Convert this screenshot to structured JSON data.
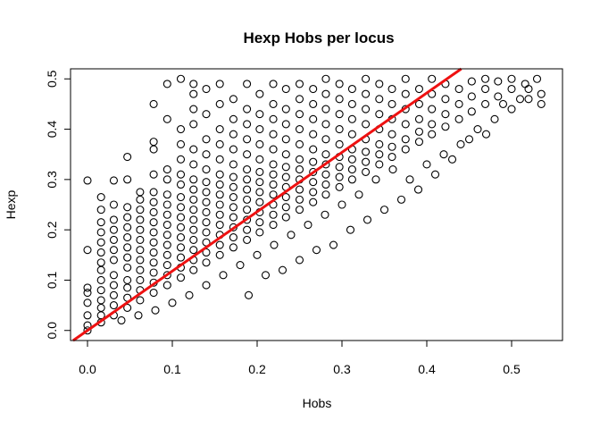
{
  "chart_data": {
    "type": "scatter",
    "title": "Hexp Hobs per locus",
    "xlabel": "Hobs",
    "ylabel": "Hexp",
    "xlim": [
      -0.02,
      0.56
    ],
    "ylim": [
      -0.02,
      0.52
    ],
    "xticks": [
      0.0,
      0.1,
      0.2,
      0.3,
      0.4,
      0.5
    ],
    "xtick_labels": [
      "0.0",
      "0.1",
      "0.2",
      "0.3",
      "0.4",
      "0.5"
    ],
    "yticks": [
      0.0,
      0.1,
      0.2,
      0.3,
      0.4,
      0.5
    ],
    "ytick_labels": [
      "0.0",
      "0.1",
      "0.2",
      "0.3",
      "0.4",
      "0.5"
    ],
    "grid": false,
    "point_marker": "open-circle",
    "point_color": "#000000",
    "fit_line": {
      "intercept": 0.0,
      "slope": 1.18,
      "color": "#ee1111"
    },
    "points": [
      [
        0.0,
        0.0
      ],
      [
        0.0,
        0.01
      ],
      [
        0.0,
        0.03
      ],
      [
        0.0,
        0.055
      ],
      [
        0.0,
        0.075
      ],
      [
        0.0,
        0.085
      ],
      [
        0.0,
        0.16
      ],
      [
        0.0,
        0.298
      ],
      [
        0.016,
        0.016
      ],
      [
        0.016,
        0.03
      ],
      [
        0.016,
        0.045
      ],
      [
        0.016,
        0.06
      ],
      [
        0.016,
        0.08
      ],
      [
        0.016,
        0.1
      ],
      [
        0.016,
        0.12
      ],
      [
        0.016,
        0.135
      ],
      [
        0.016,
        0.155
      ],
      [
        0.016,
        0.175
      ],
      [
        0.016,
        0.195
      ],
      [
        0.016,
        0.215
      ],
      [
        0.016,
        0.24
      ],
      [
        0.016,
        0.265
      ],
      [
        0.031,
        0.03
      ],
      [
        0.031,
        0.05
      ],
      [
        0.031,
        0.07
      ],
      [
        0.031,
        0.09
      ],
      [
        0.031,
        0.11
      ],
      [
        0.031,
        0.14
      ],
      [
        0.031,
        0.16
      ],
      [
        0.031,
        0.18
      ],
      [
        0.031,
        0.2
      ],
      [
        0.031,
        0.22
      ],
      [
        0.031,
        0.25
      ],
      [
        0.031,
        0.298
      ],
      [
        0.047,
        0.045
      ],
      [
        0.047,
        0.065
      ],
      [
        0.047,
        0.085
      ],
      [
        0.047,
        0.1
      ],
      [
        0.047,
        0.125
      ],
      [
        0.047,
        0.145
      ],
      [
        0.047,
        0.165
      ],
      [
        0.047,
        0.185
      ],
      [
        0.047,
        0.205
      ],
      [
        0.047,
        0.225
      ],
      [
        0.047,
        0.245
      ],
      [
        0.047,
        0.3
      ],
      [
        0.047,
        0.345
      ],
      [
        0.062,
        0.06
      ],
      [
        0.062,
        0.08
      ],
      [
        0.062,
        0.1
      ],
      [
        0.062,
        0.12
      ],
      [
        0.062,
        0.14
      ],
      [
        0.062,
        0.16
      ],
      [
        0.062,
        0.18
      ],
      [
        0.062,
        0.2
      ],
      [
        0.062,
        0.22
      ],
      [
        0.062,
        0.24
      ],
      [
        0.062,
        0.26
      ],
      [
        0.062,
        0.275
      ],
      [
        0.078,
        0.075
      ],
      [
        0.078,
        0.095
      ],
      [
        0.078,
        0.115
      ],
      [
        0.078,
        0.135
      ],
      [
        0.078,
        0.155
      ],
      [
        0.078,
        0.175
      ],
      [
        0.078,
        0.195
      ],
      [
        0.078,
        0.215
      ],
      [
        0.078,
        0.235
      ],
      [
        0.078,
        0.255
      ],
      [
        0.078,
        0.275
      ],
      [
        0.078,
        0.31
      ],
      [
        0.078,
        0.36
      ],
      [
        0.078,
        0.375
      ],
      [
        0.078,
        0.45
      ],
      [
        0.094,
        0.09
      ],
      [
        0.094,
        0.11
      ],
      [
        0.094,
        0.13
      ],
      [
        0.094,
        0.15
      ],
      [
        0.094,
        0.17
      ],
      [
        0.094,
        0.19
      ],
      [
        0.094,
        0.21
      ],
      [
        0.094,
        0.23
      ],
      [
        0.094,
        0.25
      ],
      [
        0.094,
        0.27
      ],
      [
        0.094,
        0.3
      ],
      [
        0.094,
        0.32
      ],
      [
        0.094,
        0.42
      ],
      [
        0.094,
        0.49
      ],
      [
        0.11,
        0.105
      ],
      [
        0.11,
        0.125
      ],
      [
        0.11,
        0.145
      ],
      [
        0.11,
        0.165
      ],
      [
        0.11,
        0.185
      ],
      [
        0.11,
        0.205
      ],
      [
        0.11,
        0.225
      ],
      [
        0.11,
        0.245
      ],
      [
        0.11,
        0.265
      ],
      [
        0.11,
        0.29
      ],
      [
        0.11,
        0.31
      ],
      [
        0.11,
        0.34
      ],
      [
        0.11,
        0.37
      ],
      [
        0.11,
        0.4
      ],
      [
        0.11,
        0.5
      ],
      [
        0.125,
        0.12
      ],
      [
        0.125,
        0.14
      ],
      [
        0.125,
        0.16
      ],
      [
        0.125,
        0.18
      ],
      [
        0.125,
        0.2
      ],
      [
        0.125,
        0.22
      ],
      [
        0.125,
        0.24
      ],
      [
        0.125,
        0.26
      ],
      [
        0.125,
        0.28
      ],
      [
        0.125,
        0.3
      ],
      [
        0.125,
        0.33
      ],
      [
        0.125,
        0.36
      ],
      [
        0.125,
        0.41
      ],
      [
        0.125,
        0.44
      ],
      [
        0.125,
        0.47
      ],
      [
        0.125,
        0.49
      ],
      [
        0.14,
        0.135
      ],
      [
        0.14,
        0.155
      ],
      [
        0.14,
        0.175
      ],
      [
        0.14,
        0.195
      ],
      [
        0.14,
        0.215
      ],
      [
        0.14,
        0.235
      ],
      [
        0.14,
        0.255
      ],
      [
        0.14,
        0.275
      ],
      [
        0.14,
        0.295
      ],
      [
        0.14,
        0.32
      ],
      [
        0.14,
        0.35
      ],
      [
        0.14,
        0.38
      ],
      [
        0.14,
        0.43
      ],
      [
        0.14,
        0.48
      ],
      [
        0.156,
        0.15
      ],
      [
        0.156,
        0.17
      ],
      [
        0.156,
        0.19
      ],
      [
        0.156,
        0.21
      ],
      [
        0.156,
        0.23
      ],
      [
        0.156,
        0.25
      ],
      [
        0.156,
        0.27
      ],
      [
        0.156,
        0.29
      ],
      [
        0.156,
        0.31
      ],
      [
        0.156,
        0.34
      ],
      [
        0.156,
        0.37
      ],
      [
        0.156,
        0.4
      ],
      [
        0.156,
        0.45
      ],
      [
        0.156,
        0.49
      ],
      [
        0.172,
        0.165
      ],
      [
        0.172,
        0.185
      ],
      [
        0.172,
        0.205
      ],
      [
        0.172,
        0.225
      ],
      [
        0.172,
        0.245
      ],
      [
        0.172,
        0.265
      ],
      [
        0.172,
        0.285
      ],
      [
        0.172,
        0.305
      ],
      [
        0.172,
        0.33
      ],
      [
        0.172,
        0.36
      ],
      [
        0.172,
        0.39
      ],
      [
        0.172,
        0.42
      ],
      [
        0.172,
        0.46
      ],
      [
        0.188,
        0.18
      ],
      [
        0.188,
        0.2
      ],
      [
        0.188,
        0.22
      ],
      [
        0.188,
        0.24
      ],
      [
        0.188,
        0.26
      ],
      [
        0.188,
        0.28
      ],
      [
        0.188,
        0.3
      ],
      [
        0.188,
        0.32
      ],
      [
        0.188,
        0.35
      ],
      [
        0.188,
        0.38
      ],
      [
        0.188,
        0.41
      ],
      [
        0.188,
        0.44
      ],
      [
        0.188,
        0.49
      ],
      [
        0.203,
        0.195
      ],
      [
        0.203,
        0.215
      ],
      [
        0.203,
        0.235
      ],
      [
        0.203,
        0.255
      ],
      [
        0.203,
        0.275
      ],
      [
        0.203,
        0.295
      ],
      [
        0.203,
        0.315
      ],
      [
        0.203,
        0.34
      ],
      [
        0.203,
        0.37
      ],
      [
        0.203,
        0.4
      ],
      [
        0.203,
        0.43
      ],
      [
        0.203,
        0.47
      ],
      [
        0.219,
        0.21
      ],
      [
        0.219,
        0.23
      ],
      [
        0.219,
        0.25
      ],
      [
        0.219,
        0.27
      ],
      [
        0.219,
        0.29
      ],
      [
        0.219,
        0.31
      ],
      [
        0.219,
        0.33
      ],
      [
        0.219,
        0.36
      ],
      [
        0.219,
        0.39
      ],
      [
        0.219,
        0.42
      ],
      [
        0.219,
        0.45
      ],
      [
        0.219,
        0.49
      ],
      [
        0.234,
        0.225
      ],
      [
        0.234,
        0.245
      ],
      [
        0.234,
        0.265
      ],
      [
        0.234,
        0.285
      ],
      [
        0.234,
        0.305
      ],
      [
        0.234,
        0.325
      ],
      [
        0.234,
        0.35
      ],
      [
        0.234,
        0.38
      ],
      [
        0.234,
        0.41
      ],
      [
        0.234,
        0.44
      ],
      [
        0.234,
        0.48
      ],
      [
        0.25,
        0.24
      ],
      [
        0.25,
        0.26
      ],
      [
        0.25,
        0.28
      ],
      [
        0.25,
        0.3
      ],
      [
        0.25,
        0.32
      ],
      [
        0.25,
        0.34
      ],
      [
        0.25,
        0.37
      ],
      [
        0.25,
        0.4
      ],
      [
        0.25,
        0.43
      ],
      [
        0.25,
        0.46
      ],
      [
        0.25,
        0.49
      ],
      [
        0.266,
        0.255
      ],
      [
        0.266,
        0.275
      ],
      [
        0.266,
        0.295
      ],
      [
        0.266,
        0.315
      ],
      [
        0.266,
        0.335
      ],
      [
        0.266,
        0.36
      ],
      [
        0.266,
        0.39
      ],
      [
        0.266,
        0.42
      ],
      [
        0.266,
        0.45
      ],
      [
        0.266,
        0.48
      ],
      [
        0.281,
        0.27
      ],
      [
        0.281,
        0.29
      ],
      [
        0.281,
        0.31
      ],
      [
        0.281,
        0.33
      ],
      [
        0.281,
        0.35
      ],
      [
        0.281,
        0.38
      ],
      [
        0.281,
        0.41
      ],
      [
        0.281,
        0.44
      ],
      [
        0.281,
        0.47
      ],
      [
        0.281,
        0.5
      ],
      [
        0.297,
        0.285
      ],
      [
        0.297,
        0.305
      ],
      [
        0.297,
        0.325
      ],
      [
        0.297,
        0.345
      ],
      [
        0.297,
        0.37
      ],
      [
        0.297,
        0.4
      ],
      [
        0.297,
        0.43
      ],
      [
        0.297,
        0.46
      ],
      [
        0.297,
        0.49
      ],
      [
        0.312,
        0.3
      ],
      [
        0.312,
        0.32
      ],
      [
        0.312,
        0.34
      ],
      [
        0.312,
        0.36
      ],
      [
        0.312,
        0.39
      ],
      [
        0.312,
        0.42
      ],
      [
        0.312,
        0.45
      ],
      [
        0.312,
        0.48
      ],
      [
        0.328,
        0.315
      ],
      [
        0.328,
        0.335
      ],
      [
        0.328,
        0.355
      ],
      [
        0.328,
        0.38
      ],
      [
        0.328,
        0.41
      ],
      [
        0.328,
        0.44
      ],
      [
        0.328,
        0.47
      ],
      [
        0.328,
        0.5
      ],
      [
        0.344,
        0.33
      ],
      [
        0.344,
        0.35
      ],
      [
        0.344,
        0.37
      ],
      [
        0.344,
        0.4
      ],
      [
        0.344,
        0.43
      ],
      [
        0.344,
        0.46
      ],
      [
        0.344,
        0.49
      ],
      [
        0.359,
        0.345
      ],
      [
        0.359,
        0.365
      ],
      [
        0.359,
        0.39
      ],
      [
        0.359,
        0.42
      ],
      [
        0.359,
        0.45
      ],
      [
        0.359,
        0.48
      ],
      [
        0.375,
        0.36
      ],
      [
        0.375,
        0.38
      ],
      [
        0.375,
        0.41
      ],
      [
        0.375,
        0.44
      ],
      [
        0.375,
        0.47
      ],
      [
        0.375,
        0.5
      ],
      [
        0.391,
        0.375
      ],
      [
        0.391,
        0.395
      ],
      [
        0.391,
        0.42
      ],
      [
        0.391,
        0.45
      ],
      [
        0.391,
        0.48
      ],
      [
        0.406,
        0.39
      ],
      [
        0.406,
        0.41
      ],
      [
        0.406,
        0.44
      ],
      [
        0.406,
        0.47
      ],
      [
        0.406,
        0.5
      ],
      [
        0.422,
        0.405
      ],
      [
        0.422,
        0.43
      ],
      [
        0.422,
        0.46
      ],
      [
        0.422,
        0.49
      ],
      [
        0.438,
        0.42
      ],
      [
        0.438,
        0.45
      ],
      [
        0.438,
        0.48
      ],
      [
        0.453,
        0.435
      ],
      [
        0.453,
        0.465
      ],
      [
        0.453,
        0.495
      ],
      [
        0.469,
        0.45
      ],
      [
        0.469,
        0.48
      ],
      [
        0.469,
        0.5
      ],
      [
        0.484,
        0.465
      ],
      [
        0.484,
        0.495
      ],
      [
        0.5,
        0.48
      ],
      [
        0.5,
        0.5
      ],
      [
        0.516,
        0.49
      ],
      [
        0.53,
        0.5
      ],
      [
        0.535,
        0.47
      ],
      [
        0.535,
        0.45
      ],
      [
        0.51,
        0.46
      ],
      [
        0.52,
        0.48
      ],
      [
        0.49,
        0.45
      ],
      [
        0.19,
        0.07
      ],
      [
        0.21,
        0.11
      ],
      [
        0.23,
        0.12
      ],
      [
        0.25,
        0.14
      ],
      [
        0.27,
        0.16
      ],
      [
        0.29,
        0.17
      ],
      [
        0.31,
        0.2
      ],
      [
        0.33,
        0.22
      ],
      [
        0.35,
        0.24
      ],
      [
        0.37,
        0.26
      ],
      [
        0.39,
        0.28
      ],
      [
        0.41,
        0.31
      ],
      [
        0.43,
        0.34
      ],
      [
        0.45,
        0.38
      ],
      [
        0.47,
        0.39
      ],
      [
        0.34,
        0.3
      ],
      [
        0.36,
        0.32
      ],
      [
        0.38,
        0.3
      ],
      [
        0.4,
        0.33
      ],
      [
        0.42,
        0.35
      ],
      [
        0.44,
        0.37
      ],
      [
        0.46,
        0.4
      ],
      [
        0.48,
        0.42
      ],
      [
        0.5,
        0.44
      ],
      [
        0.52,
        0.46
      ],
      [
        0.32,
        0.27
      ],
      [
        0.3,
        0.25
      ],
      [
        0.28,
        0.23
      ],
      [
        0.26,
        0.21
      ],
      [
        0.24,
        0.19
      ],
      [
        0.22,
        0.17
      ],
      [
        0.2,
        0.15
      ],
      [
        0.18,
        0.13
      ],
      [
        0.16,
        0.11
      ],
      [
        0.14,
        0.09
      ],
      [
        0.12,
        0.07
      ],
      [
        0.1,
        0.055
      ],
      [
        0.08,
        0.04
      ],
      [
        0.06,
        0.03
      ],
      [
        0.04,
        0.02
      ]
    ]
  }
}
